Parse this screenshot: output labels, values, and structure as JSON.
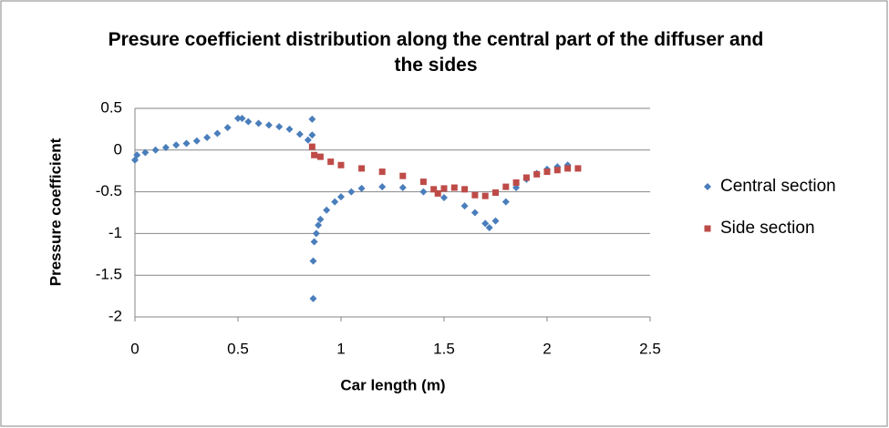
{
  "chart_data": {
    "type": "scatter",
    "title": "Presure coefficient distribution along the central part of the diffuser and the sides",
    "x_label": "Car length (m)",
    "y_label": "Pressure coefficient",
    "xlim": [
      0,
      2.5
    ],
    "xticks": [
      0,
      0.5,
      1,
      1.5,
      2,
      2.5
    ],
    "ylim": [
      -2,
      0.5
    ],
    "yticks": [
      0.5,
      0,
      -0.5,
      -1,
      -1.5,
      -2
    ],
    "grid": true,
    "legend": "right",
    "series": [
      {
        "name": "Central section",
        "color": "#4a7ebb",
        "marker": "diamond",
        "x": [
          0,
          0.01,
          0.05,
          0.1,
          0.15,
          0.2,
          0.25,
          0.3,
          0.35,
          0.4,
          0.45,
          0.5,
          0.52,
          0.55,
          0.6,
          0.65,
          0.7,
          0.75,
          0.8,
          0.84,
          0.86,
          0.86,
          0.865,
          0.865,
          0.87,
          0.88,
          0.89,
          0.9,
          0.93,
          0.97,
          1.0,
          1.05,
          1.1,
          1.2,
          1.3,
          1.4,
          1.5,
          1.6,
          1.65,
          1.7,
          1.72,
          1.75,
          1.8,
          1.85,
          1.9,
          1.95,
          2.0,
          2.05,
          2.1
        ],
        "values": [
          -0.12,
          -0.06,
          -0.03,
          0.0,
          0.03,
          0.06,
          0.08,
          0.11,
          0.15,
          0.2,
          0.27,
          0.38,
          0.38,
          0.34,
          0.32,
          0.3,
          0.28,
          0.25,
          0.19,
          0.12,
          0.37,
          0.18,
          -1.78,
          -1.33,
          -1.1,
          -1.0,
          -0.9,
          -0.83,
          -0.72,
          -0.62,
          -0.56,
          -0.5,
          -0.46,
          -0.44,
          -0.45,
          -0.5,
          -0.57,
          -0.67,
          -0.75,
          -0.88,
          -0.93,
          -0.85,
          -0.62,
          -0.45,
          -0.35,
          -0.28,
          -0.23,
          -0.2,
          -0.18
        ]
      },
      {
        "name": "Side section",
        "color": "#be4b48",
        "marker": "square",
        "x": [
          0.86,
          0.87,
          0.9,
          0.95,
          1.0,
          1.1,
          1.2,
          1.3,
          1.4,
          1.45,
          1.47,
          1.5,
          1.55,
          1.6,
          1.65,
          1.7,
          1.75,
          1.8,
          1.85,
          1.9,
          1.95,
          2.0,
          2.05,
          2.1,
          2.15
        ],
        "values": [
          0.04,
          -0.06,
          -0.08,
          -0.14,
          -0.18,
          -0.22,
          -0.26,
          -0.31,
          -0.38,
          -0.47,
          -0.52,
          -0.46,
          -0.45,
          -0.47,
          -0.54,
          -0.55,
          -0.51,
          -0.44,
          -0.39,
          -0.33,
          -0.29,
          -0.26,
          -0.24,
          -0.22,
          -0.22
        ]
      }
    ]
  }
}
